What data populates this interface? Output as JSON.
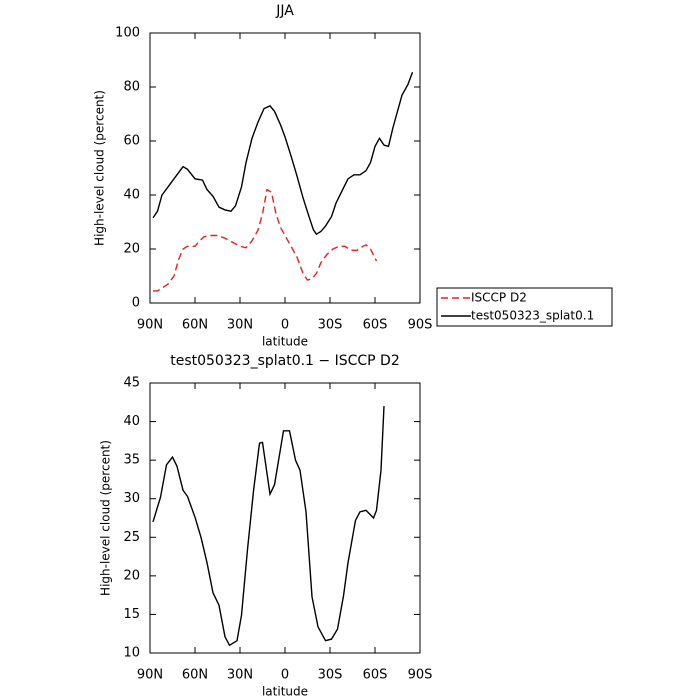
{
  "chart_data": [
    {
      "type": "line",
      "title": "JJA",
      "xlabel": "latitude",
      "ylabel": "High-level cloud (percent)",
      "xlim": [
        90,
        -90
      ],
      "ylim": [
        0,
        100
      ],
      "xticks": [
        {
          "value": 90,
          "label": "90N"
        },
        {
          "value": 60,
          "label": "60N"
        },
        {
          "value": 30,
          "label": "30N"
        },
        0,
        {
          "value": -30,
          "label": "30S"
        },
        {
          "value": -60,
          "label": "60S"
        },
        {
          "value": -90,
          "label": "90S"
        }
      ],
      "yticks": [
        0,
        20,
        40,
        60,
        80,
        100
      ],
      "legend": "right",
      "series": [
        {
          "name": "ISCCP D2",
          "color": "#e8201e",
          "linestyle": "dashed",
          "x": [
            88,
            85,
            82,
            78,
            74,
            71,
            68,
            65,
            60,
            57,
            54,
            50,
            45,
            40,
            35,
            30,
            26,
            22,
            18,
            15,
            12,
            9,
            6,
            3,
            0,
            -4,
            -8,
            -12,
            -15,
            -18,
            -21,
            -24,
            -28,
            -32,
            -36,
            -40,
            -44,
            -48,
            -52,
            -54,
            -57,
            -61
          ],
          "values": [
            4.5,
            4.5,
            5.5,
            7,
            10,
            16,
            20,
            21,
            21,
            23,
            24.5,
            25,
            25,
            24,
            22.5,
            21,
            20.5,
            23,
            27,
            33,
            42,
            41,
            33,
            28,
            25,
            21,
            17,
            11,
            8.5,
            9,
            11,
            15,
            18,
            20,
            21,
            21,
            19.5,
            19.5,
            21,
            21.5,
            20,
            15.5
          ]
        },
        {
          "name": "test050323_splat0.1",
          "color": "#000000",
          "linestyle": "solid",
          "x": [
            88,
            85,
            82,
            78,
            74,
            70,
            68,
            65,
            60,
            55,
            52,
            48,
            44,
            40,
            36,
            33,
            29,
            26,
            22,
            18,
            14,
            10,
            7,
            3,
            0,
            -4,
            -8,
            -12,
            -16,
            -19,
            -21,
            -24,
            -27,
            -31,
            -34,
            -38,
            -42,
            -46,
            -50,
            -54,
            -57,
            -60,
            -63,
            -66,
            -69,
            -72,
            -75,
            -78,
            -82,
            -85
          ],
          "values": [
            31.5,
            34,
            40,
            43,
            46,
            49,
            50.5,
            49.5,
            46,
            45.5,
            42,
            39.5,
            35.5,
            34.5,
            34,
            36,
            43,
            52,
            61,
            67,
            72,
            73,
            71,
            66,
            61.5,
            54.5,
            47,
            39,
            32,
            27,
            25.5,
            26.5,
            28.5,
            32,
            37,
            41.5,
            46,
            47.5,
            47.5,
            49,
            52,
            58,
            61,
            58.5,
            58,
            65,
            71,
            77,
            81,
            85.5
          ]
        }
      ]
    },
    {
      "type": "line",
      "title": "test050323_splat0.1 − ISCCP D2",
      "xlabel": "latitude",
      "ylabel": "High-level cloud (percent)",
      "xlim": [
        90,
        -90
      ],
      "ylim": [
        10,
        45
      ],
      "xticks": [
        {
          "value": 90,
          "label": "90N"
        },
        {
          "value": 60,
          "label": "60N"
        },
        {
          "value": 30,
          "label": "30N"
        },
        0,
        {
          "value": -30,
          "label": "30S"
        },
        {
          "value": -60,
          "label": "60S"
        },
        {
          "value": -90,
          "label": "90S"
        }
      ],
      "yticks": [
        10,
        15,
        20,
        25,
        30,
        35,
        40,
        45
      ],
      "series": [
        {
          "color": "#000000",
          "linestyle": "solid",
          "x": [
            88,
            83,
            79,
            75,
            72,
            68,
            65,
            60,
            56,
            52,
            48,
            44,
            40,
            37,
            32,
            29,
            25,
            21,
            17,
            15,
            10,
            7,
            1,
            -3,
            -7,
            -10,
            -14,
            -18,
            -22,
            -27,
            -31,
            -35,
            -39,
            -42,
            -47,
            -50,
            -54,
            -59,
            -61,
            -64,
            -66
          ],
          "values": [
            27,
            30.2,
            34.4,
            35.4,
            34.2,
            31.1,
            30.3,
            27.6,
            25,
            21.7,
            17.8,
            16.2,
            12.1,
            11,
            11.6,
            14.9,
            23.4,
            31,
            37.2,
            37.3,
            30.6,
            31.8,
            38.8,
            38.8,
            35,
            33.7,
            28.3,
            17.3,
            13.4,
            11.6,
            11.8,
            13.1,
            17.4,
            21.7,
            27.2,
            28.3,
            28.5,
            27.5,
            28.5,
            33.7,
            42
          ]
        }
      ]
    }
  ]
}
